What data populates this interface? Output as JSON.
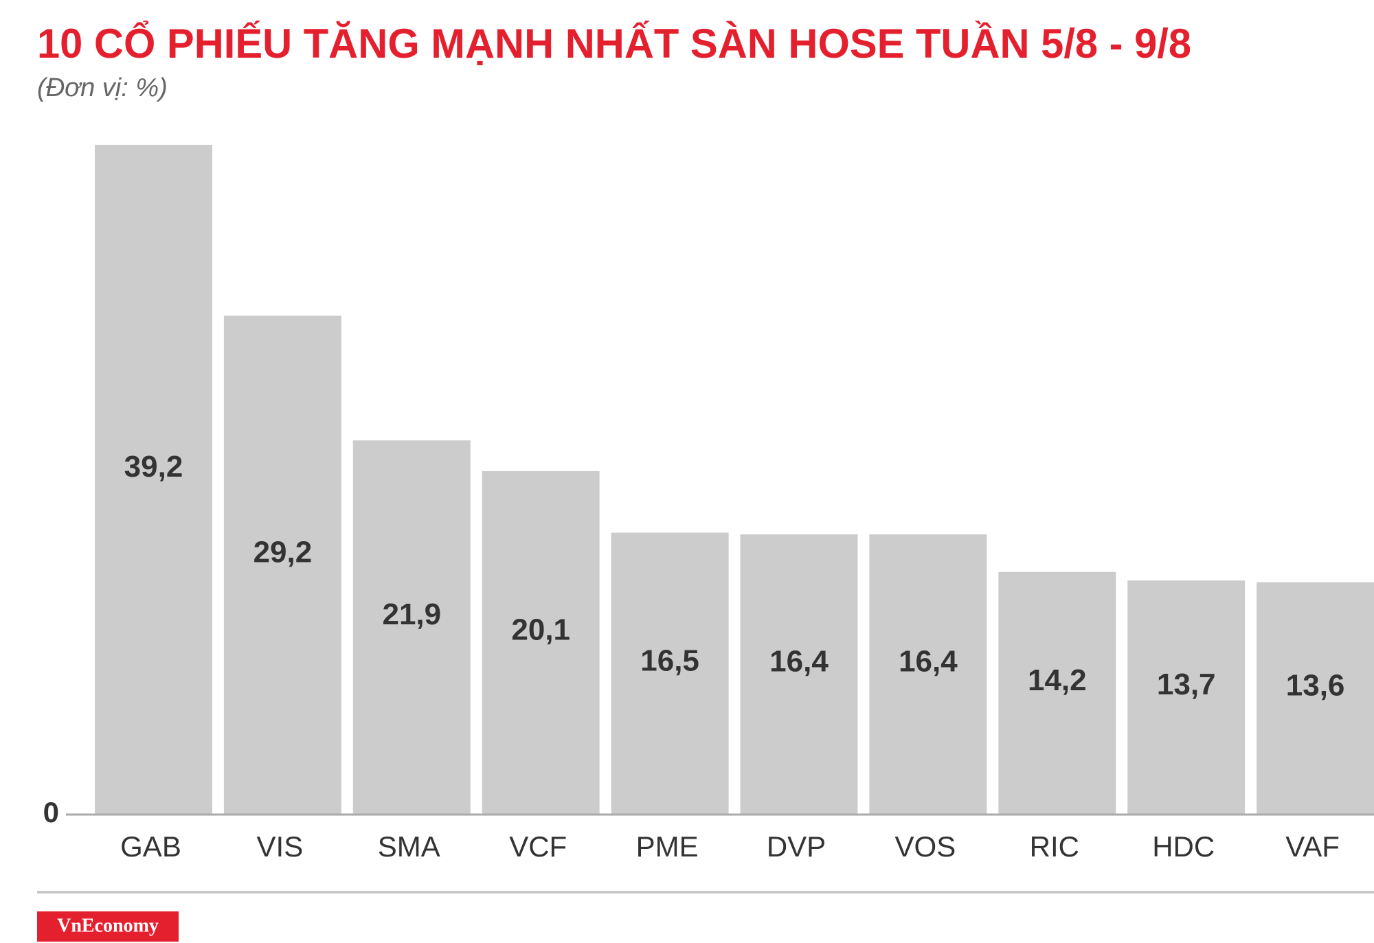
{
  "chart_data": {
    "type": "bar",
    "title": "10 CỔ PHIẾU TĂNG MẠNH NHẤT SÀN HOSE TUẦN 5/8 - 9/8",
    "subtitle": "(Đơn vị: %)",
    "categories": [
      "GAB",
      "VIS",
      "SMA",
      "VCF",
      "PME",
      "DVP",
      "VOS",
      "RIC",
      "HDC",
      "VAF"
    ],
    "values": [
      39.2,
      29.2,
      21.9,
      20.1,
      16.5,
      16.4,
      16.4,
      14.2,
      13.7,
      13.6
    ],
    "value_labels": [
      "39,2",
      "29,2",
      "21,9",
      "20,1",
      "16,5",
      "16,4",
      "16,4",
      "14,2",
      "13,7",
      "13,6"
    ],
    "color": "#cdcccc",
    "ylim": [
      0,
      40
    ],
    "yticks": [
      0
    ],
    "grid": false,
    "brand": "VnEconomy"
  }
}
